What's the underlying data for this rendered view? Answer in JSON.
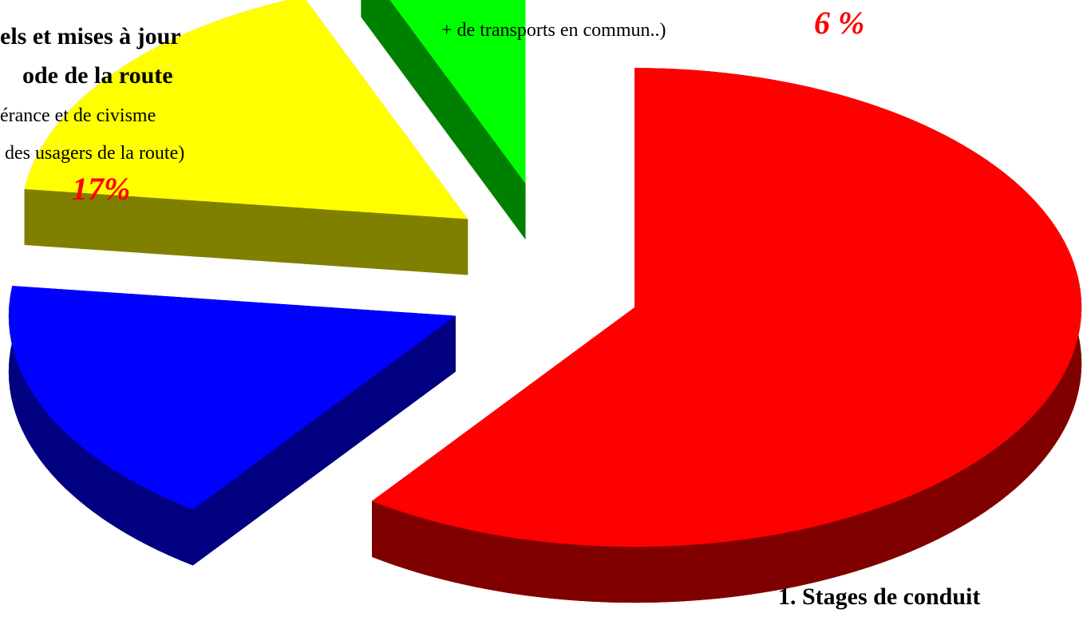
{
  "chart_data": {
    "type": "pie",
    "categories": [
      [
        "1. Stages de conduit"
      ],
      null,
      [
        "els et mises à jour",
        "ode de la route",
        "érance et de civisme",
        "des usagers de la route)"
      ],
      [
        "+ de transports en commun..)"
      ]
    ],
    "values": [
      60,
      17,
      17,
      6
    ],
    "value_labels": [
      null,
      null,
      "17%",
      "6 %"
    ],
    "colors": [
      "#ff0000",
      "#0000ff",
      "#ffff00",
      "#00ff00"
    ],
    "side_colors": [
      "#800000",
      "#000080",
      "#808000",
      "#008000"
    ],
    "three_d": true,
    "exploded": true
  }
}
